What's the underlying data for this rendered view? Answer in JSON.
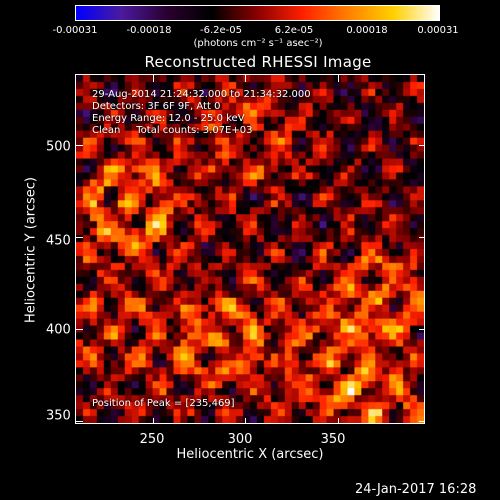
{
  "colorbar": {
    "tick_labels": [
      "-0.00031",
      "-0.00018",
      "-6.2e-05",
      "6.2e-05",
      "0.00018",
      "0.00031"
    ],
    "units": "(photons cm⁻² s⁻¹ asec⁻²)"
  },
  "title": "Reconstructed RHESSI Image",
  "info": {
    "line1": "29-Aug-2014 21:24:32.000 to 21:34:32.000",
    "line2": "Detectors: 3F 6F 9F, Att 0",
    "line3": "Energy Range: 12.0 - 25.0 keV",
    "line4": "Clean     Total counts: 3.07E+03",
    "peak": "Position of Peak = [235,469]"
  },
  "chart_data": {
    "type": "heatmap",
    "title": "Reconstructed RHESSI Image",
    "xlabel": "Heliocentric X (arcsec)",
    "ylabel": "Heliocentric Y (arcsec)",
    "x_ticks": [
      250,
      300,
      350
    ],
    "y_ticks": [
      350,
      400,
      450,
      500
    ],
    "xlim": [
      208,
      398
    ],
    "ylim": [
      348,
      538
    ],
    "colorbar_range": [
      -0.00031,
      0.00031
    ],
    "peak_position": [
      235,
      469
    ],
    "colormap": [
      "#0000ff",
      "#4b1a9e",
      "#2a0030",
      "#000000",
      "#8b0000",
      "#ff2000",
      "#ff8000",
      "#ffd000",
      "#ffffff"
    ]
  },
  "x_tick_labels": [
    "250",
    "300",
    "350"
  ],
  "y_tick_labels": [
    "350",
    "400",
    "450",
    "500"
  ],
  "datestamp": "24-Jan-2017 16:28"
}
